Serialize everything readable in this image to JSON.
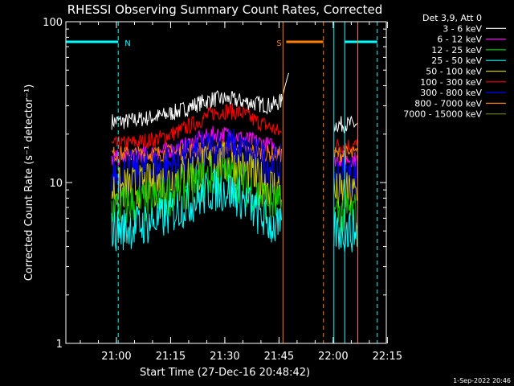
{
  "chart_data": {
    "type": "line",
    "title": "RHESSI Observing Summary Count Rates, Corrected",
    "xlabel": "Start Time (27-Dec-16 20:48:42)",
    "ylabel": "Corrected Count Rate (s⁻¹ detector⁻¹)",
    "y_scale": "log",
    "ylim": [
      1,
      100
    ],
    "x_unit": "minutes after 20:48:42",
    "xlim": [
      -2.7,
      86
    ],
    "x_ticks": [
      {
        "label": "21:00",
        "t": 11.3
      },
      {
        "label": "21:15",
        "t": 26.3
      },
      {
        "label": "21:30",
        "t": 41.3
      },
      {
        "label": "21:45",
        "t": 56.3
      },
      {
        "label": "22:00",
        "t": 71.3
      },
      {
        "label": "22:15",
        "t": 86.3
      }
    ],
    "y_ticks": [
      {
        "label": "1",
        "v": 1
      },
      {
        "label": "10",
        "v": 10
      },
      {
        "label": "100",
        "v": 100
      }
    ],
    "legend": {
      "header": "Det 3,9, Att 0",
      "placement": "right",
      "entries": [
        {
          "label": "3 - 6 keV",
          "color": "#000000"
        },
        {
          "label": "6 - 12 keV",
          "color": "#ff00ff"
        },
        {
          "label": "12 - 25 keV",
          "color": "#00c800"
        },
        {
          "label": "25 - 50 keV",
          "color": "#00ffff"
        },
        {
          "label": "50 - 100 keV",
          "color": "#c8c800"
        },
        {
          "label": "100 - 300 keV",
          "color": "#ff0000"
        },
        {
          "label": "300 - 800 keV",
          "color": "#0000ff"
        },
        {
          "label": "800 - 7000 keV",
          "color": "#ff8000"
        },
        {
          "label": "7000 - 15000 keV",
          "color": "#6e8c00"
        }
      ]
    },
    "series": [
      {
        "name": "3 - 6 keV",
        "color": "#000000",
        "segments": [
          {
            "t": [
              10,
              14,
              19,
              24,
              29,
              34,
              38,
              42,
              46,
              50,
              54,
              57
            ],
            "v": [
              24,
              24,
              25,
              26,
              28,
              31,
              33,
              33,
              32,
              31,
              30,
              32
            ]
          },
          {
            "t": [
              57,
              59
            ],
            "v": [
              32,
              48
            ]
          },
          {
            "t": [
              71.5,
              78
            ],
            "v": [
              23,
              23
            ]
          }
        ]
      },
      {
        "name": "100 - 300 keV",
        "color": "#ff0000",
        "segments": [
          {
            "t": [
              10,
              14,
              19,
              24,
              29,
              34,
              38,
              42,
              46,
              50,
              54,
              57
            ],
            "v": [
              17,
              17.5,
              18,
              19,
              21,
              24,
              27,
              28,
              27,
              24,
              22,
              20
            ]
          },
          {
            "t": [
              71.5,
              78
            ],
            "v": [
              17,
              17
            ]
          }
        ]
      },
      {
        "name": "6 - 12 keV",
        "color": "#ff00ff",
        "segments": [
          {
            "t": [
              10,
              14,
              19,
              24,
              29,
              34,
              38,
              42,
              46,
              50,
              54,
              57
            ],
            "v": [
              14,
              14.5,
              15,
              15.5,
              16.5,
              18.5,
              20,
              20,
              19,
              18,
              17,
              16
            ]
          },
          {
            "t": [
              71.5,
              78
            ],
            "v": [
              14,
              14
            ]
          }
        ]
      },
      {
        "name": "800 - 7000 keV",
        "color": "#ff8000",
        "segments": [
          {
            "t": [
              10,
              14,
              19,
              24,
              29,
              34,
              38,
              42,
              46,
              50,
              54,
              57
            ],
            "v": [
              15,
              15,
              15,
              15.2,
              15.5,
              16,
              16.5,
              16.5,
              16,
              15.5,
              15,
              15
            ]
          },
          {
            "t": [
              71.5,
              78
            ],
            "v": [
              15,
              15
            ]
          }
        ]
      },
      {
        "name": "300 - 800 keV",
        "color": "#0000ff",
        "segments": [
          {
            "t": [
              10,
              14,
              19,
              24,
              29,
              34,
              38,
              42,
              46,
              50,
              54,
              57
            ],
            "v": [
              11,
              11.5,
              12,
              12.5,
              13.5,
              15,
              16,
              16.5,
              15.5,
              14,
              13,
              12.5
            ]
          },
          {
            "t": [
              71.5,
              78
            ],
            "v": [
              11,
              11
            ]
          }
        ]
      },
      {
        "name": "50 - 100 keV",
        "color": "#c8c800",
        "segments": [
          {
            "t": [
              10,
              14,
              19,
              24,
              29,
              34,
              38,
              42,
              46,
              50,
              54,
              57
            ],
            "v": [
              9,
              9.2,
              9.5,
              10,
              11,
              12,
              13,
              13,
              12,
              10.5,
              9.5,
              9
            ]
          },
          {
            "t": [
              71.5,
              78
            ],
            "v": [
              8.5,
              8.5
            ]
          }
        ]
      },
      {
        "name": "12 - 25 keV",
        "color": "#00c800",
        "segments": [
          {
            "t": [
              10,
              14,
              19,
              24,
              29,
              34,
              38,
              42,
              46,
              50,
              54,
              57
            ],
            "v": [
              7,
              7.2,
              7.5,
              8,
              9,
              10,
              11,
              11,
              10,
              8.5,
              7.5,
              7
            ]
          },
          {
            "t": [
              71.5,
              78
            ],
            "v": [
              6.5,
              6.5
            ]
          }
        ]
      },
      {
        "name": "25 - 50 keV",
        "color": "#00ffff",
        "segments": [
          {
            "t": [
              10,
              14,
              19,
              24,
              29,
              34,
              38,
              42,
              46,
              50,
              54,
              57
            ],
            "v": [
              5,
              5.2,
              5.5,
              6,
              7,
              8,
              9,
              9,
              8,
              6.5,
              5.5,
              5
            ]
          },
          {
            "t": [
              71.5,
              78
            ],
            "v": [
              5,
              5
            ]
          }
        ]
      }
    ],
    "flags": [
      {
        "label": "N",
        "color": "#00ffff",
        "level": 75,
        "ranges": [
          [
            -2.7,
            11.8
          ],
          [
            74.5,
            83.5
          ]
        ],
        "vlines": [
          {
            "t": -2.7,
            "style": "solid"
          },
          {
            "t": 11.8,
            "style": "dashed"
          },
          {
            "t": 71.5,
            "style": "solid"
          },
          {
            "t": 74.5,
            "style": "solid"
          },
          {
            "t": 83.5,
            "style": "dashed"
          }
        ]
      },
      {
        "label": "S",
        "color": "#ff8000",
        "level": 75,
        "ranges": [
          [
            58.3,
            68.6
          ]
        ],
        "vlines": [
          {
            "t": 57.4,
            "style": "solid"
          },
          {
            "t": 68.6,
            "style": "dashed"
          },
          {
            "t": 78.1,
            "style": "solid"
          }
        ]
      }
    ],
    "grid": false
  },
  "timestamp": "1-Sep-2022 20:46"
}
